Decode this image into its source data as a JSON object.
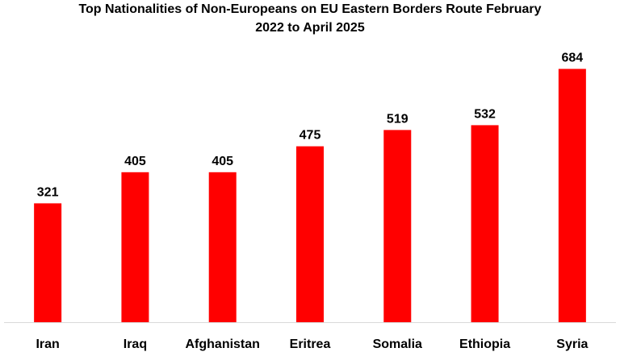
{
  "chart_data": {
    "type": "bar",
    "title_lines": [
      "Top Nationalities of Non-Europeans on EU Eastern Borders Route February",
      "2022 to April 2025"
    ],
    "categories": [
      "Iran",
      "Iraq",
      "Afghanistan",
      "Eritrea",
      "Somalia",
      "Ethiopia",
      "Syria"
    ],
    "values": [
      321,
      405,
      405,
      475,
      519,
      532,
      684
    ],
    "data_labels": [
      "321",
      "405",
      "405",
      "475",
      "519",
      "532",
      "684"
    ],
    "ylim": [
      0,
      700
    ],
    "grid": false,
    "legend": "none",
    "bar_color": "#ff0000",
    "axis_color": "#d9d9d9"
  }
}
